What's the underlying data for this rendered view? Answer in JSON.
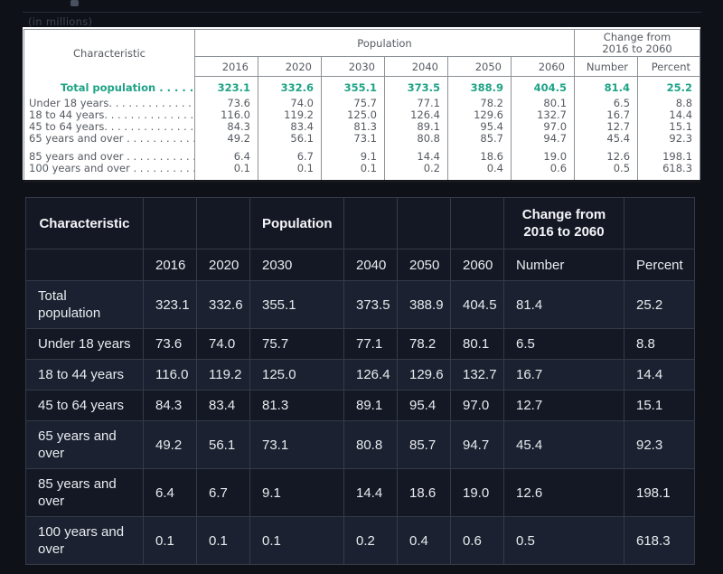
{
  "page_top": {
    "caption": "(in millions)"
  },
  "census_table": {
    "accent_color": "#1ea387",
    "header": {
      "characteristic": "Characteristic",
      "population": "Population",
      "change_line1": "Change from",
      "change_line2": "2016 to 2060",
      "years": [
        "2016",
        "2020",
        "2030",
        "2040",
        "2050",
        "2060"
      ],
      "number": "Number",
      "percent": "Percent"
    },
    "total_row": {
      "label": "Total population . . . . . . .",
      "values": [
        "323.1",
        "332.6",
        "355.1",
        "373.5",
        "388.9",
        "404.5",
        "81.4",
        "25.2"
      ]
    },
    "group1": [
      {
        "label": "Under 18 years. . . . . . . . . . . . . .",
        "values": [
          "73.6",
          "74.0",
          "75.7",
          "77.1",
          "78.2",
          "80.1",
          "6.5",
          "8.8"
        ]
      },
      {
        "label": "18 to 44 years. . . . . . . . . . . . . .",
        "values": [
          "116.0",
          "119.2",
          "125.0",
          "126.4",
          "129.6",
          "132.7",
          "16.7",
          "14.4"
        ]
      },
      {
        "label": "45 to 64 years. . . . . . . . . . . . . .",
        "values": [
          "84.3",
          "83.4",
          "81.3",
          "89.1",
          "95.4",
          "97.0",
          "12.7",
          "15.1"
        ]
      },
      {
        "label": "65 years and over . . . . . . . . . . .",
        "values": [
          "49.2",
          "56.1",
          "73.1",
          "80.8",
          "85.7",
          "94.7",
          "45.4",
          "92.3"
        ]
      }
    ],
    "group2": [
      {
        "label": "85 years and over . . . . . . . . . . .",
        "values": [
          "6.4",
          "6.7",
          "9.1",
          "14.4",
          "18.6",
          "19.0",
          "12.6",
          "198.1"
        ]
      },
      {
        "label": "100 years and over . . . . . . . . . .",
        "values": [
          "0.1",
          "0.1",
          "0.1",
          "0.2",
          "0.4",
          "0.6",
          "0.5",
          "618.3"
        ]
      }
    ]
  },
  "dark_table": {
    "header_row": [
      "Characteristic",
      "",
      "",
      "Population",
      "",
      "",
      "",
      "Change from 2016 to 2060",
      ""
    ],
    "rows": [
      [
        "",
        "2016",
        "2020",
        "2030",
        "2040",
        "2050",
        "2060",
        "Number",
        "Percent"
      ],
      [
        "Total population",
        "323.1",
        "332.6",
        "355.1",
        "373.5",
        "388.9",
        "404.5",
        "81.4",
        "25.2"
      ],
      [
        "Under 18 years",
        "73.6",
        "74.0",
        "75.7",
        "77.1",
        "78.2",
        "80.1",
        "6.5",
        "8.8"
      ],
      [
        "18 to 44 years",
        "116.0",
        "119.2",
        "125.0",
        "126.4",
        "129.6",
        "132.7",
        "16.7",
        "14.4"
      ],
      [
        "45 to 64 years",
        "84.3",
        "83.4",
        "81.3",
        "89.1",
        "95.4",
        "97.0",
        "12.7",
        "15.1"
      ],
      [
        "65 years and over",
        "49.2",
        "56.1",
        "73.1",
        "80.8",
        "85.7",
        "94.7",
        "45.4",
        "92.3"
      ],
      [
        "85 years and over",
        "6.4",
        "6.7",
        "9.1",
        "14.4",
        "18.6",
        "19.0",
        "12.6",
        "198.1"
      ],
      [
        "100 years and over",
        "0.1",
        "0.1",
        "0.1",
        "0.2",
        "0.4",
        "0.6",
        "0.5",
        "618.3"
      ]
    ]
  }
}
